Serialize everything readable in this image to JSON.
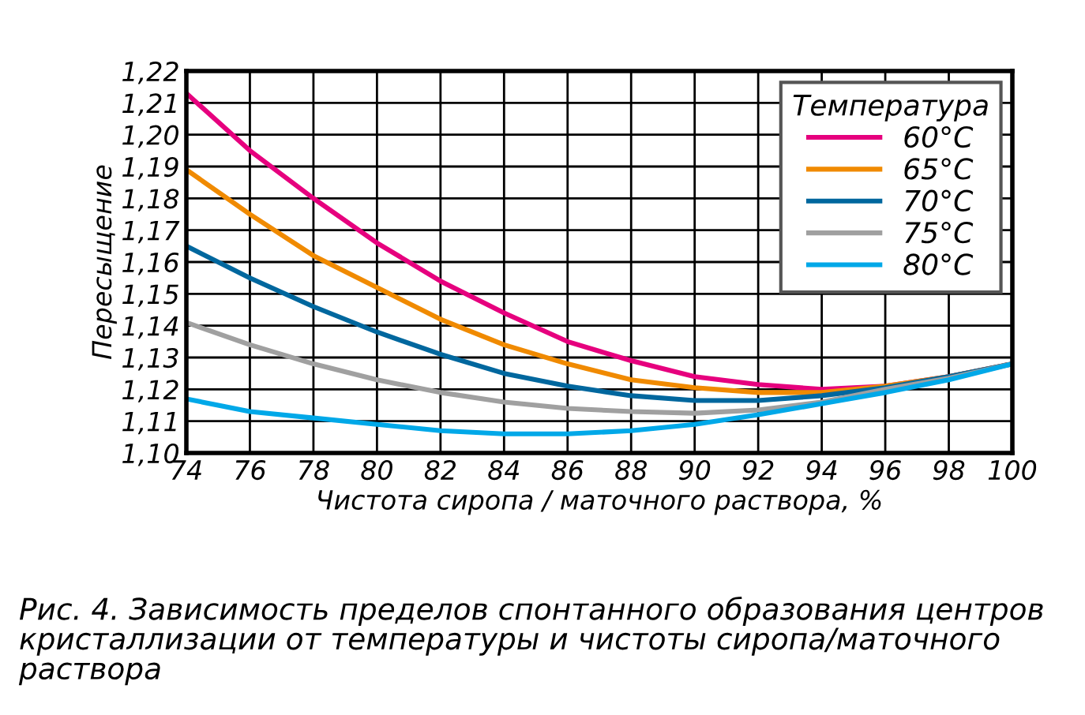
{
  "chart_data": {
    "type": "line",
    "xlabel": "Чистота сиропа / маточного раствора, %",
    "ylabel": "Пересыщение",
    "legend_title": "Температура",
    "legend": "top right",
    "grid": true,
    "marker": "none",
    "line_style": "solid",
    "x": [
      74,
      76,
      78,
      80,
      82,
      84,
      86,
      88,
      90,
      92,
      94,
      96,
      98,
      100
    ],
    "xlim": [
      74,
      100
    ],
    "xticks": [
      74,
      76,
      78,
      80,
      82,
      84,
      86,
      88,
      90,
      92,
      94,
      96,
      98,
      100
    ],
    "ylim": [
      1.1,
      1.22
    ],
    "yticks": [
      {
        "value": 1.1,
        "label": "1,10"
      },
      {
        "value": 1.11,
        "label": "1,11"
      },
      {
        "value": 1.12,
        "label": "1,12"
      },
      {
        "value": 1.13,
        "label": "1,13"
      },
      {
        "value": 1.14,
        "label": "1,14"
      },
      {
        "value": 1.15,
        "label": "1,15"
      },
      {
        "value": 1.16,
        "label": "1,16"
      },
      {
        "value": 1.17,
        "label": "1,17"
      },
      {
        "value": 1.18,
        "label": "1,18"
      },
      {
        "value": 1.19,
        "label": "1,19"
      },
      {
        "value": 1.2,
        "label": "1,20"
      },
      {
        "value": 1.21,
        "label": "1,21"
      },
      {
        "value": 1.22,
        "label": "1,22"
      }
    ],
    "series": [
      {
        "name": "60°C",
        "color": "#e6007e",
        "values": [
          1.213,
          1.195,
          1.18,
          1.166,
          1.154,
          1.144,
          1.135,
          1.129,
          1.124,
          1.1215,
          1.12,
          1.121,
          1.124,
          1.128
        ]
      },
      {
        "name": "65°C",
        "color": "#f08a00",
        "values": [
          1.189,
          1.175,
          1.162,
          1.152,
          1.142,
          1.134,
          1.128,
          1.123,
          1.1205,
          1.119,
          1.119,
          1.121,
          1.124,
          1.128
        ]
      },
      {
        "name": "70°C",
        "color": "#00679e",
        "values": [
          1.165,
          1.155,
          1.146,
          1.138,
          1.131,
          1.125,
          1.121,
          1.118,
          1.1165,
          1.1165,
          1.118,
          1.1205,
          1.124,
          1.128
        ]
      },
      {
        "name": "75°C",
        "color": "#a0a0a0",
        "values": [
          1.141,
          1.134,
          1.128,
          1.123,
          1.119,
          1.116,
          1.114,
          1.113,
          1.1125,
          1.1135,
          1.116,
          1.12,
          1.1235,
          1.128
        ]
      },
      {
        "name": "80°C",
        "color": "#00a8e8",
        "values": [
          1.117,
          1.113,
          1.111,
          1.109,
          1.107,
          1.106,
          1.106,
          1.107,
          1.109,
          1.112,
          1.1155,
          1.119,
          1.123,
          1.128
        ]
      }
    ],
    "annotations": [
      "Рис. 4. Зависимость пределов спонтанного образования центров кристаллизации от температуры и чистоты сиропа/маточного раствора"
    ]
  }
}
